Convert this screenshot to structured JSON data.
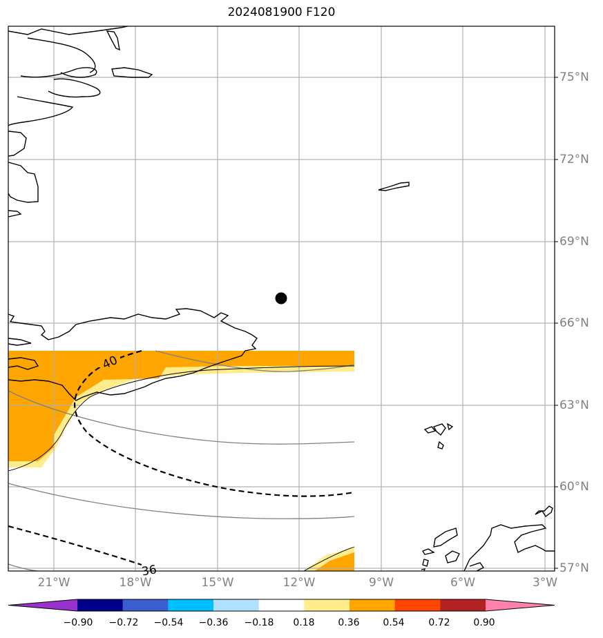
{
  "map": {
    "title": "2024081900 F120",
    "lat_labels": [
      "75°N",
      "72°N",
      "69°N",
      "66°N",
      "63°N",
      "60°N",
      "57°N"
    ],
    "lon_labels": [
      "21°W",
      "18°W",
      "15°W",
      "12°W",
      "9°W",
      "6°W",
      "3°W"
    ],
    "contour_labels": [
      "40",
      "36"
    ],
    "marker": "point-marker"
  },
  "colorbar": {
    "ticks": [
      "−0.90",
      "−0.72",
      "−0.54",
      "−0.36",
      "−0.18",
      "0.18",
      "0.36",
      "0.54",
      "0.72",
      "0.90"
    ],
    "colors": [
      "#9932cc",
      "#00008b",
      "#3a5fcd",
      "#00bfff",
      "#b0e2ff",
      "#ffffff",
      "#ffec8b",
      "#ffa500",
      "#ff4500",
      "#b22222",
      "#ff82ab"
    ]
  }
}
